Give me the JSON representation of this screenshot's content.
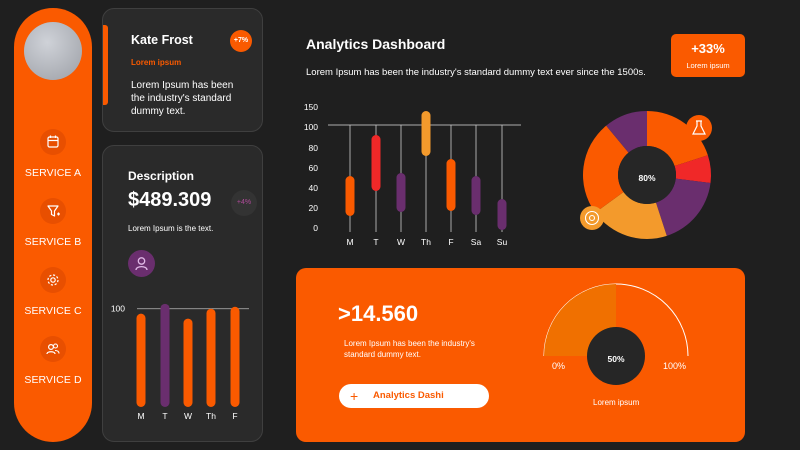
{
  "sidebar": {
    "items": [
      {
        "label": "SERVICE A",
        "icon": "calendar-icon"
      },
      {
        "label": "SERVICE B",
        "icon": "funnel-icon"
      },
      {
        "label": "SERVICE C",
        "icon": "gear-icon"
      },
      {
        "label": "SERVICE D",
        "icon": "users-icon"
      }
    ]
  },
  "profile_card": {
    "name": "Kate Frost",
    "badge": "+7%",
    "subtitle": "Lorem ipsum",
    "text": "Lorem Ipsum has been the industry's standard dummy text."
  },
  "description_card": {
    "title": "Description",
    "price": "$489.309",
    "badge": "+4%",
    "text": "Lorem Ipsum is the text."
  },
  "header": {
    "title": "Analytics Dashboard",
    "text": "Lorem Ipsum has been the industry's standard dummy text ever since the 1500s."
  },
  "percent_box": {
    "value": "+33%",
    "label": "Lorem ipsum"
  },
  "donut": {
    "center_label": "80%",
    "icons": [
      "flask-icon",
      "target-icon"
    ]
  },
  "panel": {
    "big_number": ">14.560",
    "text": "Lorem Ipsum has been the industry's standard dummy text.",
    "button_label": "Analytics Dashi",
    "gauge_value": "50%",
    "gauge_min": "0%",
    "gauge_max": "100%",
    "gauge_label": "Lorem ipsum"
  },
  "colors": {
    "accent": "#fa5a00",
    "red": "#f02828",
    "purple": "#6a2e6e",
    "amber": "#f39a2c",
    "background": "#1f1f1f"
  },
  "chart_data": [
    {
      "type": "bar",
      "categories": [
        "M",
        "T",
        "W",
        "Th",
        "F"
      ],
      "values": [
        95,
        105,
        90,
        100,
        102
      ],
      "ytick": "100",
      "ylim": [
        0,
        115
      ]
    },
    {
      "type": "bar",
      "categories": [
        "M",
        "T",
        "W",
        "Th",
        "F",
        "Sa",
        "Su"
      ],
      "ranges": [
        [
          12,
          52
        ],
        [
          37,
          93
        ],
        [
          16,
          55
        ],
        [
          72,
          117
        ],
        [
          17,
          69
        ],
        [
          13,
          52
        ],
        [
          -2,
          29
        ]
      ],
      "range_colors": [
        "#fa5a00",
        "#f02828",
        "#6a2e6e",
        "#f39a2c",
        "#fa5a00",
        "#6a2e6e",
        "#6a2e6e"
      ],
      "ylim": [
        0,
        150
      ],
      "yticks": [
        "150",
        "100",
        "80",
        "60",
        "40",
        "20",
        "0"
      ]
    },
    {
      "type": "pie",
      "segments": [
        {
          "value": 20,
          "color": "#fa5a00"
        },
        {
          "value": 7,
          "color": "#f02828"
        },
        {
          "value": 18,
          "color": "#6a2e6e"
        },
        {
          "value": 20,
          "color": "#f39a2c"
        },
        {
          "value": 24,
          "color": "#fa5a00"
        },
        {
          "value": 11,
          "color": "#6a2e6e"
        }
      ],
      "center_label": "80%"
    },
    {
      "type": "pie",
      "value": 50,
      "min_label": "0%",
      "max_label": "100%",
      "center_label": "50%"
    }
  ]
}
